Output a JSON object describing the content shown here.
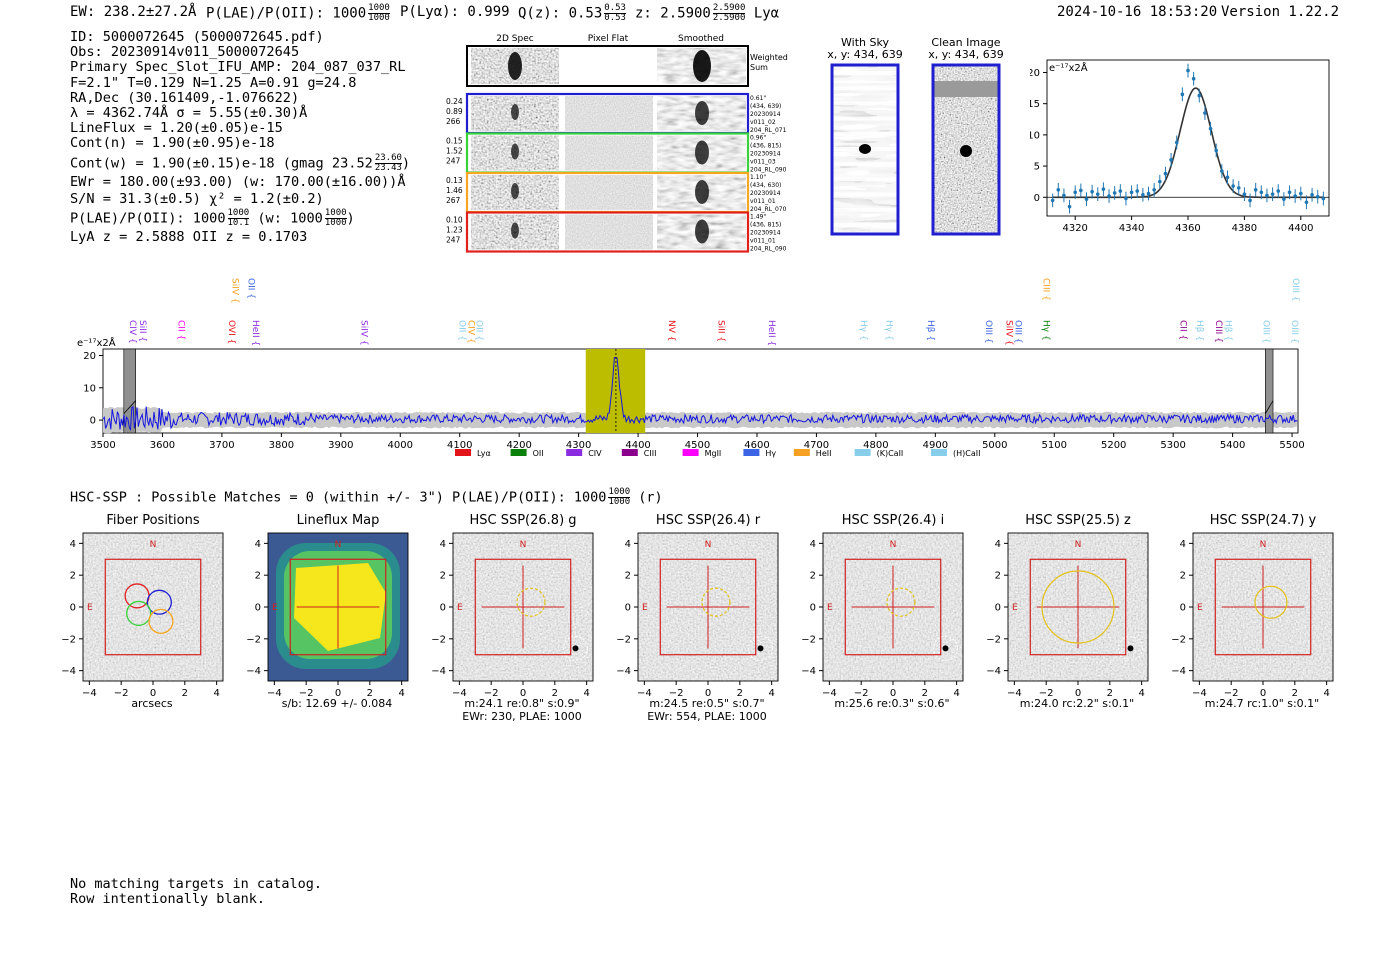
{
  "header": {
    "ew": "EW: 238.2±27.2Å",
    "plae_label": "P(LAE)/P(OII): 1000",
    "plae_hi": "1000",
    "plae_lo": "1000",
    "plya": "P(Lyα): 0.999",
    "qz_label": "Q(z): 0.53",
    "qz_hi": "0.53",
    "qz_lo": "0.53",
    "z_label": "z: 2.5900",
    "z_hi": "2.5900",
    "z_lo": "2.5900",
    "z_line": "Lyα",
    "datetime": "2024-10-16 18:53:20",
    "version": "Version 1.22.2"
  },
  "info": {
    "id": "ID: 5000072645 (5000072645.pdf)",
    "obs": "Obs: 20230914v011_5000072645",
    "primary": "Primary Spec_Slot_IFU_AMP: 204_087_037_RL",
    "params": "F=2.1\"  T=0.129  N=1.25  A=0.91  g=24.8",
    "radec": "RA,Dec (30.161409,-1.076622)",
    "lambda": "λ = 4362.74Å   σ = 5.55(±0.30)Å",
    "lineflux": "LineFlux = 1.20(±0.05)e-15",
    "contn": "Cont(n) = 1.90(±0.95)e-18",
    "contw": "Cont(w) = 1.90(±0.15)e-18 (gmag 23.52",
    "gmag_hi": "23.60",
    "gmag_lo": "23.43",
    "contw_end": ")",
    "ewr": "EWr = 180.00(±93.00) (w: 170.00(±16.00))Å",
    "sn": "S/N = 31.3(±0.5)  χ² = 1.2(±0.2)",
    "plae": "P(LAE)/P(OII): 1000",
    "plae_hi": "1000",
    "plae_lo": "10.1",
    "plae_w": "(w: 1000",
    "plae_w_hi": "1000",
    "plae_w_lo": "1000",
    "plae_w_end": ")",
    "lya_z": "LyA z = 2.5888  OII z = 0.1703"
  },
  "cutouts": {
    "col_titles": [
      "2D Spec",
      "Pixel Flat",
      "Smoothed"
    ],
    "weighted_sum": [
      "Weighted",
      "Sum"
    ],
    "rows": [
      {
        "left": [
          "0.24",
          "0.89",
          "266"
        ],
        "right": [
          "0.61\"",
          "(434, 639)",
          "20230914",
          "v011_02",
          "204_RL_071"
        ],
        "color": "#1f1fd0"
      },
      {
        "left": [
          "0.15",
          "1.52",
          "247"
        ],
        "right": [
          "0.96\"",
          "(436, 815)",
          "20230914",
          "v011_03",
          "204_RL_090"
        ],
        "color": "#3ad23a"
      },
      {
        "left": [
          "0.13",
          "1.46",
          "267"
        ],
        "right": [
          "1.10\"",
          "(434, 630)",
          "20230914",
          "v011_01",
          "204_RL_070"
        ],
        "color": "#f5a623"
      },
      {
        "left": [
          "0.10",
          "1.23",
          "247"
        ],
        "right": [
          "1.49\"",
          "(436, 815)",
          "20230914",
          "v011_01",
          "204_RL_090"
        ],
        "color": "#e0201a"
      }
    ]
  },
  "sky_images": [
    {
      "title": "With Sky",
      "coords": "x, y: 434, 639"
    },
    {
      "title": "Clean Image",
      "coords": "x, y: 434, 639"
    }
  ],
  "chart_data": [
    {
      "type": "line",
      "title": "",
      "unit_label": "e⁻¹⁷x2Å",
      "xlim": [
        4310,
        4410
      ],
      "ylim": [
        -3,
        22
      ],
      "xticks": [
        4320,
        4340,
        4360,
        4380,
        4400
      ],
      "yticks": [
        0,
        5,
        10,
        15,
        20
      ],
      "fit_center": 4362.74,
      "fit_sigma": 5.55,
      "fit_amp": 17.5,
      "points_x": [
        4312,
        4314,
        4316,
        4318,
        4320,
        4322,
        4324,
        4326,
        4328,
        4330,
        4332,
        4334,
        4336,
        4338,
        4340,
        4342,
        4344,
        4346,
        4348,
        4350,
        4352,
        4354,
        4356,
        4358,
        4360,
        4362,
        4364,
        4366,
        4368,
        4370,
        4372,
        4374,
        4376,
        4378,
        4380,
        4382,
        4384,
        4386,
        4388,
        4390,
        4392,
        4394,
        4396,
        4398,
        4400,
        4402,
        4404,
        4406,
        4408
      ],
      "points_y": [
        -0.5,
        1.2,
        0.3,
        -1.5,
        0.8,
        1.1,
        -0.3,
        0.9,
        0.5,
        1.3,
        0.2,
        0.7,
        1.0,
        -0.2,
        0.8,
        1.0,
        0.4,
        0.6,
        1.2,
        2.5,
        3.8,
        6.0,
        8.8,
        16.5,
        20.3,
        19.0,
        16.3,
        13.5,
        11.0,
        7.5,
        4.2,
        3.2,
        1.8,
        1.5,
        0.5,
        -0.5,
        1.2,
        0.8,
        0.3,
        0.5,
        1.0,
        -0.3,
        0.8,
        0.2,
        0.6,
        -0.8,
        0.4,
        0.1,
        -0.2
      ]
    },
    {
      "type": "line",
      "unit_label": "e⁻¹⁷x2Å",
      "xlim": [
        3500,
        5510
      ],
      "ylim": [
        -4,
        22
      ],
      "xticks": [
        3500,
        3600,
        3700,
        3800,
        3900,
        4000,
        4100,
        4200,
        4300,
        4400,
        4500,
        4600,
        4700,
        4800,
        4900,
        5000,
        5100,
        5200,
        5300,
        5400,
        5500
      ],
      "yticks": [
        0,
        10,
        20
      ],
      "peak_x": 4362.74,
      "peak_y": 20,
      "highlight_band": [
        4312,
        4412
      ],
      "masked_bands": [
        [
          3535,
          3555
        ],
        [
          5455,
          5468
        ]
      ],
      "legend": [
        {
          "label": "Lyα",
          "color": "#e4151a"
        },
        {
          "label": "OII",
          "color": "#0a7f0a"
        },
        {
          "label": "CIV",
          "color": "#8a2be2"
        },
        {
          "label": "CIII",
          "color": "#8b008b"
        },
        {
          "label": "MgII",
          "color": "#ff00ff"
        },
        {
          "label": "Hγ",
          "color": "#3c64e6"
        },
        {
          "label": "HeII",
          "color": "#f5a020"
        },
        {
          "label": "(K)CaII",
          "color": "#87ceeb"
        },
        {
          "label": "(H)CaII",
          "color": "#87ceeb"
        }
      ],
      "line_labels_top": [
        {
          "label": "SiIV",
          "x": 3718,
          "color": "#f5a020"
        },
        {
          "label": "OII",
          "x": 3745,
          "color": "#3c64e6"
        },
        {
          "label": "CIII",
          "x": 5082,
          "color": "#f5a020"
        },
        {
          "label": "OIII",
          "x": 5502,
          "color": "#87ceeb"
        }
      ],
      "line_labels_bottom": [
        {
          "label": "CIV",
          "x": 3545,
          "color": "#8a2be2"
        },
        {
          "label": "SiII",
          "x": 3562,
          "color": "#8a2be2"
        },
        {
          "label": "CII",
          "x": 3627,
          "color": "#ff00ff"
        },
        {
          "label": "OVI",
          "x": 3712,
          "color": "#e4151a"
        },
        {
          "label": "HeII",
          "x": 3752,
          "color": "#8a2be2"
        },
        {
          "label": "SiIV",
          "x": 3935,
          "color": "#8a2be2"
        },
        {
          "label": "OII",
          "x": 4100,
          "color": "#87ceeb"
        },
        {
          "label": "CIV",
          "x": 4115,
          "color": "#f5a020"
        },
        {
          "label": "OII",
          "x": 4128,
          "color": "#87ceeb"
        },
        {
          "label": "NV",
          "x": 4452,
          "color": "#e4151a"
        },
        {
          "label": "SiII",
          "x": 4535,
          "color": "#e4151a"
        },
        {
          "label": "HeII",
          "x": 4620,
          "color": "#8a2be2"
        },
        {
          "label": "Hγ",
          "x": 4775,
          "color": "#87ceeb"
        },
        {
          "label": "Hγ",
          "x": 4818,
          "color": "#87ceeb"
        },
        {
          "label": "Hβ",
          "x": 4888,
          "color": "#3c64e6"
        },
        {
          "label": "OIII",
          "x": 4985,
          "color": "#3c64e6"
        },
        {
          "label": "SiIV",
          "x": 5020,
          "color": "#e4151a"
        },
        {
          "label": "OIII",
          "x": 5035,
          "color": "#3c64e6"
        },
        {
          "label": "Hγ",
          "x": 5082,
          "color": "#0a7f0a"
        },
        {
          "label": "CII",
          "x": 5312,
          "color": "#8b008b"
        },
        {
          "label": "Hβ",
          "x": 5340,
          "color": "#87ceeb"
        },
        {
          "label": "CIII",
          "x": 5372,
          "color": "#8b008b"
        },
        {
          "label": "Hβ",
          "x": 5388,
          "color": "#87ceeb"
        },
        {
          "label": "OIII",
          "x": 5452,
          "color": "#87ceeb"
        },
        {
          "label": "OIII",
          "x": 5500,
          "color": "#87ceeb"
        }
      ]
    }
  ],
  "hsc": {
    "summary": "HSC-SSP : Possible Matches = 0 (within +/- 3\")  P(LAE)/P(OII): 1000",
    "plae_hi": "1000",
    "plae_lo": "1000",
    "band": "(r)",
    "north": "N",
    "east": "E",
    "ticks": [
      "−4",
      "−2",
      "0",
      "2",
      "4"
    ],
    "panels": [
      {
        "title": "Fiber Positions",
        "caption": [
          "arcsecs"
        ],
        "kind": "fiber"
      },
      {
        "title": "Lineflux Map",
        "caption": [
          "s/b: 12.69 +/- 0.084"
        ],
        "kind": "flux"
      },
      {
        "title": "HSC SSP(26.8) g",
        "caption": [
          "m:24.1  re:0.8\"  s:0.9\"",
          "EWr: 230, PLAE: 1000"
        ],
        "kind": "hsc",
        "ell_r": 14
      },
      {
        "title": "HSC SSP(26.4) r",
        "caption": [
          "m:24.5  re:0.5\"  s:0.7\"",
          "EWr: 554, PLAE: 1000"
        ],
        "kind": "hsc",
        "ell_r": 14
      },
      {
        "title": "HSC SSP(26.4) i",
        "caption": [
          "m:25.6  re:0.3\"  s:0.6\""
        ],
        "kind": "hsc",
        "ell_r": 14
      },
      {
        "title": "HSC SSP(25.5) z",
        "caption": [
          "m:24.0 rc:2.2\"  s:0.1\""
        ],
        "kind": "hsc",
        "ell_r": 36
      },
      {
        "title": "HSC SSP(24.7) y",
        "caption": [
          "m:24.7 rc:1.0\"  s:0.1\""
        ],
        "kind": "hsc",
        "ell_r": 16
      }
    ]
  },
  "footer": [
    "No matching targets in catalog.",
    "Row intentionally blank."
  ]
}
